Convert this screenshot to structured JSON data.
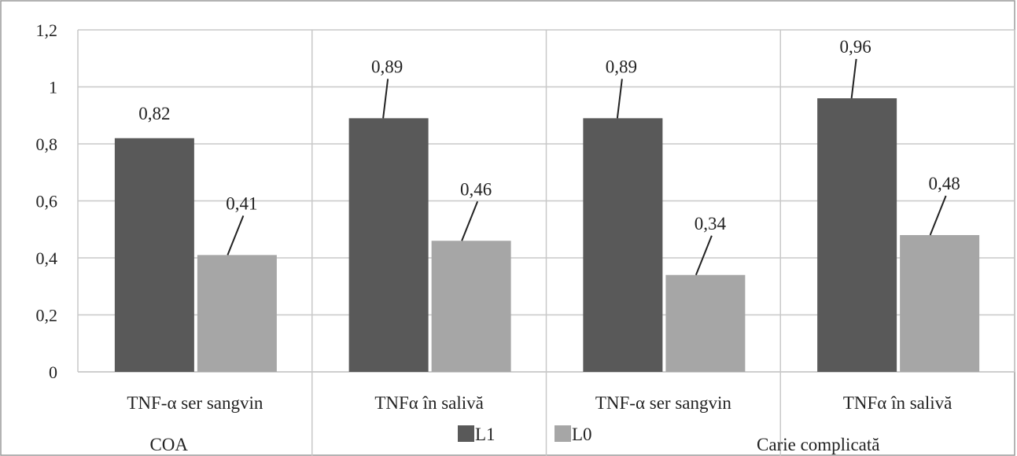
{
  "chart_data": {
    "type": "bar",
    "categories": [
      "TNF-α ser sangvin",
      "TNFα în salivă",
      "TNF-α ser sangvin",
      "TNFα în salivă"
    ],
    "groups": [
      "COA",
      "Carie complicată"
    ],
    "series": [
      {
        "name": "L1",
        "values": [
          0.82,
          0.89,
          0.89,
          0.96
        ],
        "labels": [
          "0,82",
          "0,89",
          "0,89",
          "0,96"
        ],
        "color": "#595959"
      },
      {
        "name": "L0",
        "values": [
          0.41,
          0.46,
          0.34,
          0.48
        ],
        "labels": [
          "0,41",
          "0,46",
          "0,34",
          "0,48"
        ],
        "color": "#a6a6a6"
      }
    ],
    "yticks": [
      "0",
      "0,2",
      "0,4",
      "0,6",
      "0,8",
      "1",
      "1,2"
    ],
    "ylim": [
      0,
      1.2
    ],
    "grid": true,
    "legend": "bottom-center"
  }
}
